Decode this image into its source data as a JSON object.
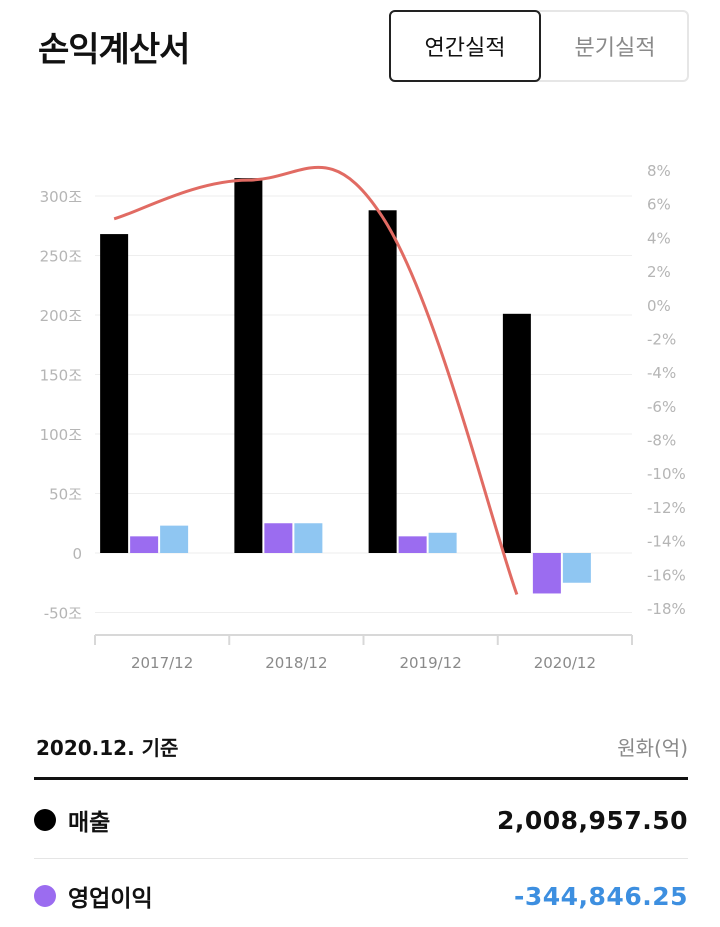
{
  "header": {
    "title": "손익계산서",
    "tabs": [
      {
        "label": "연간실적",
        "active": true
      },
      {
        "label": "분기실적",
        "active": false
      }
    ]
  },
  "chart_data": {
    "type": "bar",
    "categories": [
      "2017/12",
      "2018/12",
      "2019/12",
      "2020/12"
    ],
    "series": [
      {
        "name": "매출",
        "color": "#000000",
        "values": [
          268,
          315,
          288,
          201
        ]
      },
      {
        "name": "영업이익",
        "color": "#9b6cf0",
        "values": [
          14,
          25,
          14,
          -34
        ]
      },
      {
        "color": "#8fc6f2",
        "values": [
          23,
          25,
          17,
          -25
        ]
      }
    ],
    "line": {
      "color": "#e16b63",
      "values": [
        5.1,
        7.4,
        5.2,
        -17.2
      ],
      "axis": "right"
    },
    "left_axis": {
      "ticks": [
        "300조",
        "250조",
        "200조",
        "150조",
        "100조",
        "50조",
        "0",
        "-50조"
      ],
      "ylim": [
        -50,
        300
      ]
    },
    "right_axis": {
      "ticks": [
        "8%",
        "6%",
        "4%",
        "2%",
        "0%",
        "-2%",
        "-4%",
        "-6%",
        "-8%",
        "-10%",
        "-12%",
        "-14%",
        "-16%",
        "-18%"
      ],
      "ylim": [
        -18,
        8
      ]
    },
    "grid": true,
    "legend": "none"
  },
  "summary": {
    "basis": "2020.12. 기준",
    "currency": "원화(억)",
    "rows": [
      {
        "label": "매출",
        "value": "2,008,957.50",
        "dot_color": "#000000",
        "value_color": "#111111"
      },
      {
        "label": "영업이익",
        "value": "-344,846.25",
        "dot_color": "#9b6cf0",
        "value_color": "#3d8fe0"
      }
    ]
  }
}
